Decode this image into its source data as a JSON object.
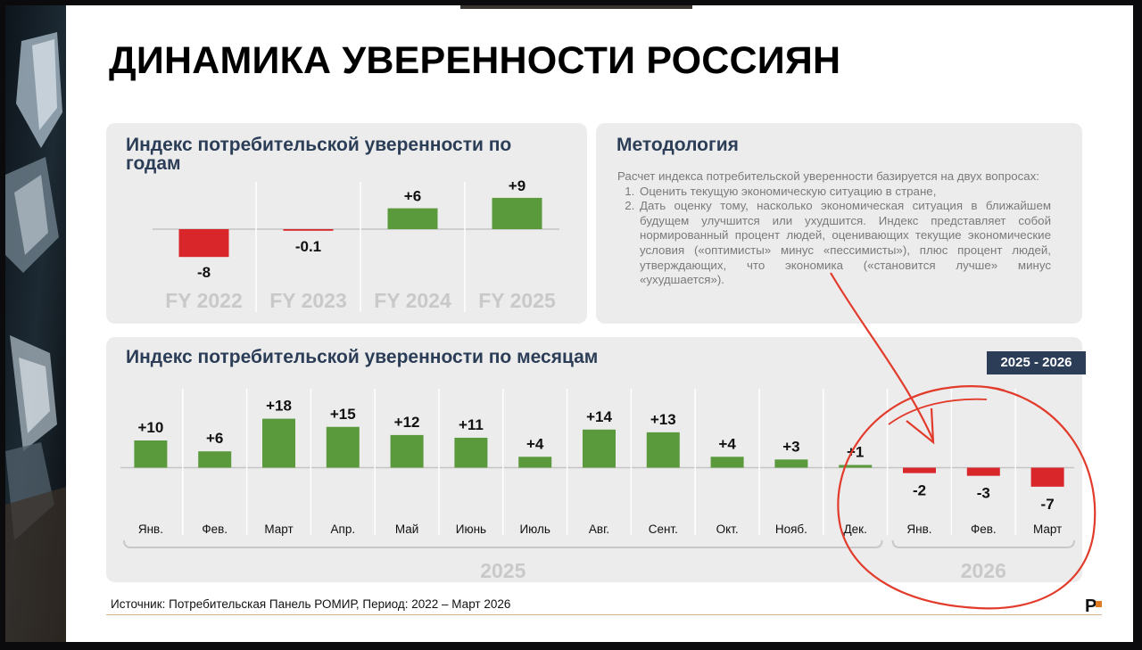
{
  "slide_title": "ДИНАМИКА УВЕРЕННОСТИ РОССИЯН",
  "methodology": {
    "title": "Методология",
    "intro": "Расчет индекса потребительской уверенности базируется на двух вопросах:",
    "items": [
      "Оценить текущую экономическую ситуацию в стране,",
      "Дать оценку тому, насколько экономическая ситуация в ближайшем будущем улучшится или ухудшится. Индекс представляет собой нормированный процент людей, оценивающих текущие экономические условия («оптимисты» минус «пессимисты»), плюс процент людей, утверждающих, что экономика («становится лучше» минус «ухудшается»)."
    ]
  },
  "source": "Источник: Потребительская Панель РОМИР, Период: 2022 – Март 2026",
  "logo_text": "P",
  "colors": {
    "positive": "#5a9a3c",
    "negative": "#d9262b",
    "title": "#2c3e57",
    "year_label": "#c9c9c9"
  },
  "chart_data": [
    {
      "type": "bar",
      "title": "Индекс потребительской уверенности по годам",
      "categories": [
        "FY 2022",
        "FY 2023",
        "FY 2024",
        "FY 2025"
      ],
      "values": [
        -8,
        -0.1,
        6,
        9
      ],
      "labels": [
        "-8",
        "-0.1",
        "+6",
        "+9"
      ]
    },
    {
      "type": "bar",
      "title": "Индекс потребительской уверенности по месяцам",
      "badge": "2025 - 2026",
      "categories": [
        "Янв.",
        "Фев.",
        "Март",
        "Апр.",
        "Май",
        "Июнь",
        "Июль",
        "Авг.",
        "Сент.",
        "Окт.",
        "Нояб.",
        "Дек.",
        "Янв.",
        "Фев.",
        "Март"
      ],
      "values": [
        10,
        6,
        18,
        15,
        12,
        11,
        4,
        14,
        13,
        4,
        3,
        1,
        -2,
        -3,
        -7
      ],
      "labels": [
        "+10",
        "+6",
        "+18",
        "+15",
        "+12",
        "+11",
        "+4",
        "+14",
        "+13",
        "+4",
        "+3",
        "+1",
        "-2",
        "-3",
        "-7"
      ],
      "year_groups": [
        {
          "label": "2025",
          "count": 12
        },
        {
          "label": "2026",
          "count": 3
        }
      ]
    }
  ]
}
